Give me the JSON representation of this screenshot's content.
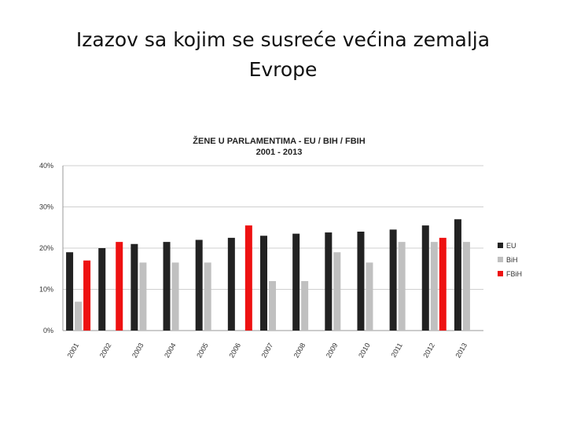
{
  "slide": {
    "title_line1": "Izazov sa kojim se susreće većina zemalja",
    "title_line2": "Evrope"
  },
  "chart_data": {
    "type": "bar",
    "title": [
      "ŽENE U PARLAMENTIMA - EU / BIH / FBIH",
      "2001 - 2013"
    ],
    "categories": [
      "2001",
      "2002",
      "2003",
      "2004",
      "2005",
      "2006",
      "2007",
      "2008",
      "2009",
      "2010",
      "2011",
      "2012",
      "2013"
    ],
    "series": [
      {
        "name": "EU",
        "color": "#222222",
        "values": [
          19,
          20,
          21,
          21.5,
          22,
          22.5,
          23,
          23.5,
          23.8,
          24,
          24.5,
          25.5,
          27
        ]
      },
      {
        "name": "BiH",
        "color": "#c0c0c0",
        "values": [
          7,
          null,
          16.5,
          16.5,
          16.5,
          null,
          12,
          12,
          19,
          16.5,
          21.5,
          21.5,
          21.5
        ]
      },
      {
        "name": "FBiH",
        "color": "#ee1111",
        "values": [
          17,
          21.5,
          null,
          null,
          null,
          25.5,
          null,
          null,
          null,
          null,
          null,
          22.5,
          null
        ]
      }
    ],
    "yticks": [
      "0%",
      "10%",
      "20%",
      "30%",
      "40%"
    ],
    "ylim": [
      0,
      40
    ],
    "grid": true,
    "legend": "right"
  }
}
